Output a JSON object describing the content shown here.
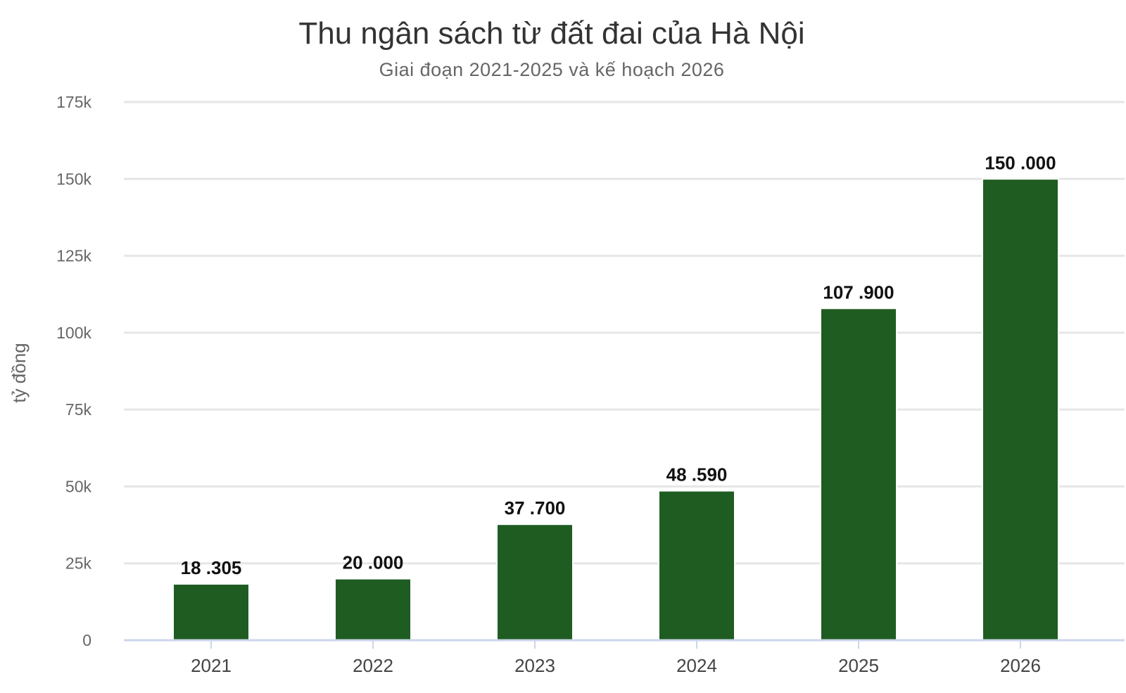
{
  "chart_data": {
    "type": "bar",
    "title": "Thu ngân sách từ đất đai của Hà Nội",
    "subtitle": "Giai đoạn 2021-2025 và kế hoạch 2026",
    "ylabel": "tỷ đồng",
    "xlabel": "",
    "categories": [
      "2021",
      "2022",
      "2023",
      "2024",
      "2025",
      "2026"
    ],
    "values": [
      18305,
      20000,
      37700,
      48590,
      107900,
      150000
    ],
    "data_labels": [
      "18 .305",
      "20 .000",
      "37 .700",
      "48 .590",
      "107 .900",
      "150 .000"
    ],
    "ylim": [
      0,
      175000
    ],
    "y_ticks": [
      0,
      25000,
      50000,
      75000,
      100000,
      125000,
      150000,
      175000
    ],
    "y_tick_labels": [
      "0",
      "25k",
      "50k",
      "75k",
      "100k",
      "125k",
      "150k",
      "175k"
    ],
    "grid": true,
    "legend": "none",
    "bar_color": "#1f5c22",
    "grid_color": "#e6e6e6",
    "axis_color": "#ccd6eb"
  }
}
